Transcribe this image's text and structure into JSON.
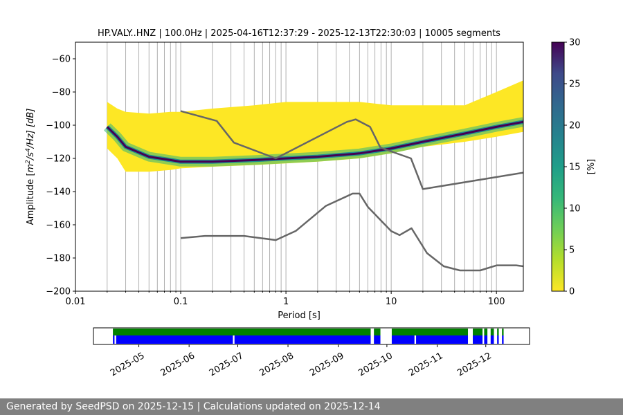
{
  "chart_data": {
    "type": "heatmap",
    "title": "HP.VALY..HNZ | 100.0Hz | 2025-04-16T12:37:29 - 2025-12-13T22:30:03 | 10005 segments",
    "xlabel": "Period [s]",
    "ylabel": "Amplitude [m²/s⁴/Hz] [dB]",
    "ylabel_parts": {
      "pre": "Amplitude [",
      "m": "m",
      "sup2": "2",
      "s": "/s",
      "sup4": "4",
      "hz": "/Hz] [dB]"
    },
    "x_scale": "log",
    "xlim": [
      0.01,
      180
    ],
    "ylim": [
      -200,
      -50
    ],
    "x_ticks": [
      {
        "value": 0.01,
        "label": "0.01"
      },
      {
        "value": 0.1,
        "label": "0.1"
      },
      {
        "value": 1,
        "label": "1"
      },
      {
        "value": 10,
        "label": "10"
      },
      {
        "value": 100,
        "label": "100"
      }
    ],
    "y_ticks": [
      {
        "value": -60,
        "label": "−60"
      },
      {
        "value": -80,
        "label": "−80"
      },
      {
        "value": -100,
        "label": "−100"
      },
      {
        "value": -120,
        "label": "−120"
      },
      {
        "value": -140,
        "label": "−140"
      },
      {
        "value": -160,
        "label": "−160"
      },
      {
        "value": -180,
        "label": "−180"
      },
      {
        "value": -200,
        "label": "−200"
      }
    ],
    "grid": "x-major-and-minor",
    "colormap": "viridis_r",
    "colorbar": {
      "label": "[%]",
      "range": [
        0,
        30
      ],
      "ticks": [
        {
          "value": 0,
          "label": "0"
        },
        {
          "value": 5,
          "label": "5"
        },
        {
          "value": 10,
          "label": "10"
        },
        {
          "value": 15,
          "label": "15"
        },
        {
          "value": 20,
          "label": "20"
        },
        {
          "value": 25,
          "label": "25"
        },
        {
          "value": 30,
          "label": "30"
        }
      ]
    },
    "density_band": {
      "period": [
        0.02,
        0.025,
        0.03,
        0.05,
        0.08,
        0.1,
        0.2,
        0.5,
        1,
        2,
        5,
        10,
        20,
        50,
        100,
        180
      ],
      "mode_db": [
        -101,
        -107,
        -113,
        -119,
        -121,
        -122,
        -122,
        -121,
        -120,
        -119,
        -117,
        -114,
        -110,
        -105,
        -101,
        -98
      ],
      "upper_db": [
        -86,
        -90,
        -92,
        -93,
        -92,
        -92,
        -90,
        -88,
        -86,
        -86,
        -86,
        -88,
        -88,
        -88,
        -80,
        -73
      ],
      "lower_db": [
        -114,
        -120,
        -128,
        -128,
        -127,
        -126,
        -125,
        -124,
        -123,
        -122,
        -120,
        -117,
        -113,
        -110,
        -107,
        -104
      ]
    },
    "series": [
      {
        "period": [
          0.1,
          0.22,
          0.32,
          0.8,
          3.8,
          4.6,
          6.3,
          7.9,
          15.4,
          20,
          180
        ],
        "db": [
          -91.5,
          -97.4,
          -110.5,
          -120,
          -98,
          -96.5,
          -101,
          -113.5,
          -120,
          -138.5,
          -128.6
        ]
      },
      {
        "period": [
          0.1,
          0.17,
          0.4,
          0.8,
          1.24,
          2.4,
          4.3,
          5,
          6,
          10,
          12,
          15.6,
          21.9,
          31.6,
          45,
          70,
          101,
          154,
          180
        ],
        "db": [
          -168,
          -166.7,
          -166.7,
          -169.2,
          -163.7,
          -148.6,
          -141.2,
          -141.2,
          -149.2,
          -163.8,
          -166.2,
          -162.1,
          -177.1,
          -185,
          -187.5,
          -187.5,
          -184.4,
          -184.4,
          -185
        ]
      }
    ],
    "timeline": {
      "range": [
        "2025-04-03",
        "2025-12-28"
      ],
      "tick_labels": [
        {
          "date": "2025-05-01",
          "label": "2025-05"
        },
        {
          "date": "2025-06-01",
          "label": "2025-06"
        },
        {
          "date": "2025-07-01",
          "label": "2025-07"
        },
        {
          "date": "2025-08-01",
          "label": "2025-08"
        },
        {
          "date": "2025-09-01",
          "label": "2025-09"
        },
        {
          "date": "2025-10-01",
          "label": "2025-10"
        },
        {
          "date": "2025-11-01",
          "label": "2025-11"
        },
        {
          "date": "2025-12-01",
          "label": "2025-12"
        }
      ],
      "data_available": [
        [
          "2025-04-15",
          "2025-09-21"
        ],
        [
          "2025-09-23",
          "2025-09-27"
        ],
        [
          "2025-10-04",
          "2025-11-20"
        ],
        [
          "2025-11-23",
          "2025-11-29"
        ],
        [
          "2025-11-30",
          "2025-12-02"
        ],
        [
          "2025-12-04",
          "2025-12-06"
        ],
        [
          "2025-12-08",
          "2025-12-09"
        ],
        [
          "2025-12-11",
          "2025-12-12"
        ]
      ],
      "psd_used": [
        [
          "2025-04-15",
          "2025-04-16"
        ],
        [
          "2025-04-17",
          "2025-06-28"
        ],
        [
          "2025-06-29",
          "2025-09-21"
        ],
        [
          "2025-09-23",
          "2025-09-27"
        ],
        [
          "2025-10-04",
          "2025-10-18"
        ],
        [
          "2025-10-19",
          "2025-11-20"
        ],
        [
          "2025-11-23",
          "2025-11-29"
        ],
        [
          "2025-11-30",
          "2025-12-02"
        ],
        [
          "2025-12-04",
          "2025-12-06"
        ],
        [
          "2025-12-08",
          "2025-12-09"
        ],
        [
          "2025-12-11",
          "2025-12-12"
        ]
      ],
      "colors": {
        "available": "#008000",
        "used": "#0000ff"
      }
    }
  },
  "footer": {
    "text": "Generated by SeedPSD on 2025-12-15 | Calculations updated on 2025-12-14"
  },
  "colors": {
    "nlnm_nhnm_line": "#666666",
    "grid": "#b0b0b0",
    "background": "#ffffff",
    "footer_bg": "#808080"
  }
}
